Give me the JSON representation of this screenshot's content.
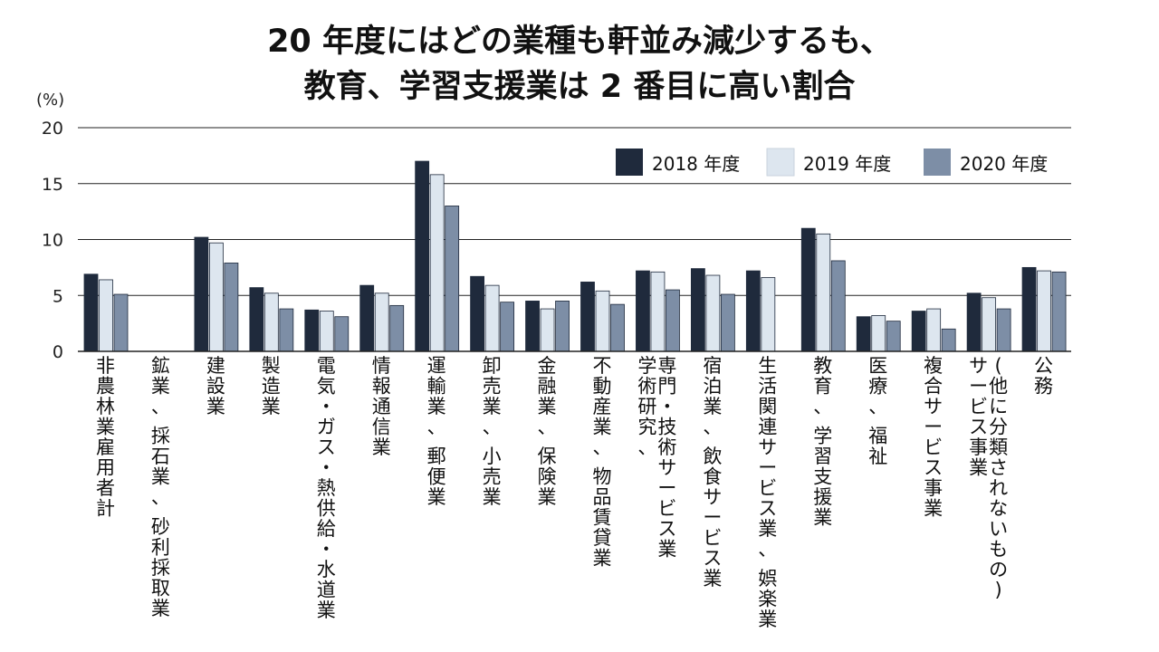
{
  "title_line1": "20 年度にはどの業種も軒並み減少するも、",
  "title_line2": "教育、学習支援業は 2 番目に高い割合",
  "colors": {
    "s2018": "#1f2a3c",
    "s2019": "#dde6ef",
    "s2020": "#7d8ea6",
    "grid": "#222222",
    "text": "#111111"
  },
  "chart_data": {
    "type": "bar",
    "unit_label": "(%)",
    "ylim": [
      0,
      20
    ],
    "yticks": [
      "0",
      "5",
      "10",
      "15",
      "20"
    ],
    "grid": true,
    "legend_position": "top-right",
    "categories": [
      "非農林業雇用者計",
      "鉱業、 採石業、 砂利採取業",
      "建設業",
      "製造業",
      "電気・ガス・熱供給・水道業",
      "情報通信業",
      "運輸業、 郵便業",
      "卸売業、 小売業",
      "金融業、 保険業",
      "不動産業、 物品賃貸業",
      "学術研究、 専門・技術サービス業",
      "宿泊業、 飲食サービス業",
      "生活関連サービス業、 娯楽業",
      "教育、 学習支援業",
      "医療、 福祉",
      "複合サービス事業",
      "サービス事業 (他に分類されないもの)",
      "公務"
    ],
    "category_lines": [
      [
        "非農林業雇用者計"
      ],
      [
        "鉱業、 採石業、 砂利採取業"
      ],
      [
        "建設業"
      ],
      [
        "製造業"
      ],
      [
        "電気・ガス・熱供給・水道業"
      ],
      [
        "情報通信業"
      ],
      [
        "運輸業、 郵便業"
      ],
      [
        "卸売業、 小売業"
      ],
      [
        "金融業、 保険業"
      ],
      [
        "不動産業、 物品賃貸業"
      ],
      [
        "学術研究、",
        "専門・技術サービス業"
      ],
      [
        "宿泊業、 飲食サービス業"
      ],
      [
        "生活関連サービス業、 娯楽業"
      ],
      [
        "教育、 学習支援業"
      ],
      [
        "医療、 福祉"
      ],
      [
        "複合サービス事業"
      ],
      [
        "サービス事業",
        "(他に分類されないもの)"
      ],
      [
        "公務"
      ]
    ],
    "series": [
      {
        "name": "2018 年度",
        "color_key": "s2018",
        "values": [
          6.9,
          0,
          10.2,
          5.7,
          3.7,
          5.9,
          17.0,
          6.7,
          4.5,
          6.2,
          7.2,
          7.4,
          7.2,
          11.0,
          3.1,
          3.6,
          5.2,
          7.5
        ]
      },
      {
        "name": "2019 年度",
        "color_key": "s2019",
        "values": [
          6.4,
          0,
          9.7,
          5.2,
          3.6,
          5.2,
          15.8,
          5.9,
          3.8,
          5.4,
          7.1,
          6.8,
          6.6,
          10.5,
          3.2,
          3.8,
          4.8,
          7.2
        ]
      },
      {
        "name": "2020 年度",
        "color_key": "s2020",
        "values": [
          5.1,
          0,
          7.9,
          3.8,
          3.1,
          4.1,
          13.0,
          4.4,
          4.5,
          4.2,
          5.5,
          5.1,
          0,
          8.1,
          2.7,
          2.0,
          3.8,
          7.1
        ]
      }
    ]
  }
}
